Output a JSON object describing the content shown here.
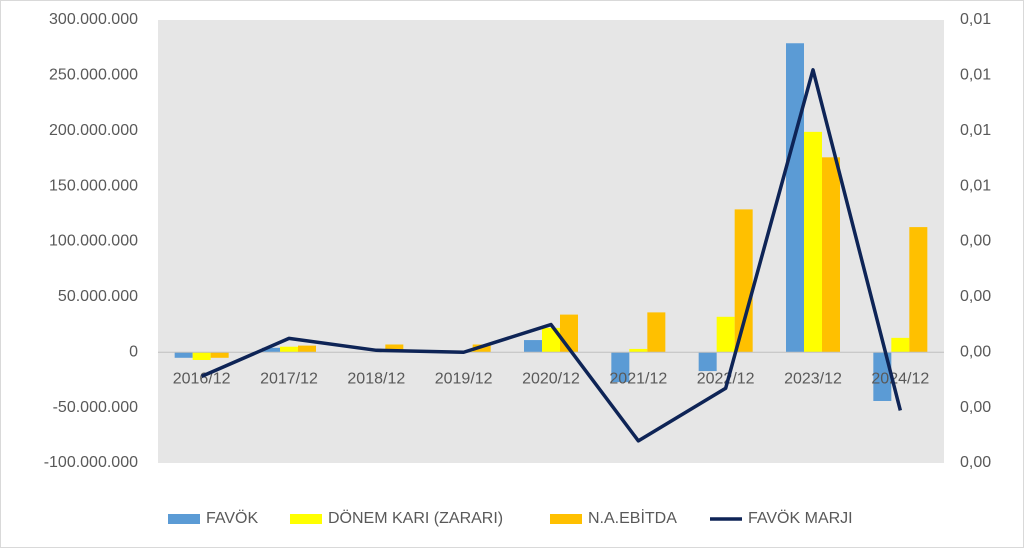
{
  "chart_data": {
    "type": "bar-line",
    "categories": [
      "2016/12",
      "2017/12",
      "2018/12",
      "2019/12",
      "2020/12",
      "2021/12",
      "2022/12",
      "2023/12",
      "2024/12"
    ],
    "series": [
      {
        "name": "FAVÖK",
        "type": "bar",
        "color": "#5b9bd5",
        "values": [
          -5000000,
          4000000,
          0,
          0,
          11000000,
          -27000000,
          -17000000,
          279000000,
          -44000000
        ]
      },
      {
        "name": "DÖNEM KARI (ZARARI)",
        "type": "bar",
        "color": "#ffff00",
        "values": [
          -7000000,
          5000000,
          0,
          1000000,
          22000000,
          3000000,
          32000000,
          199000000,
          13000000
        ]
      },
      {
        "name": "N.A.EBİTDA",
        "type": "bar",
        "color": "#ffc000",
        "values": [
          -5000000,
          6000000,
          7000000,
          7000000,
          34000000,
          36000000,
          129000000,
          176000000,
          113000000
        ]
      },
      {
        "name": "FAVÖK MARJI",
        "type": "line",
        "axis": "y2",
        "color": "#0e2456",
        "values": [
          -0.00087,
          0.0005,
          7e-05,
          0,
          0.001,
          -0.0032,
          -0.0013,
          0.0102,
          -0.0021
        ]
      }
    ],
    "ylim": [
      -100000000,
      300000000
    ],
    "yticks": [
      {
        "value": -100000000,
        "label": "-100.000.000"
      },
      {
        "value": -50000000,
        "label": "-50.000.000"
      },
      0,
      {
        "value": 50000000,
        "label": "50.000.000"
      },
      {
        "value": 100000000,
        "label": "100.000.000"
      },
      {
        "value": 150000000,
        "label": "150.000.000"
      },
      {
        "value": 200000000,
        "label": "200.000.000"
      },
      {
        "value": 250000000,
        "label": "250.000.000"
      },
      {
        "value": 300000000,
        "label": "300.000.000"
      }
    ],
    "y2lim": [
      -0.004,
      0.012
    ],
    "y2ticks": [
      {
        "value": -0.004,
        "label": "0,00"
      },
      {
        "value": -0.002,
        "label": "0,00"
      },
      {
        "value": 0,
        "label": "0,00"
      },
      {
        "value": 0.002,
        "label": "0,00"
      },
      {
        "value": 0.004,
        "label": "0,00"
      },
      {
        "value": 0.006,
        "label": "0,01"
      },
      {
        "value": 0.008,
        "label": "0,01"
      },
      {
        "value": 0.01,
        "label": "0,01"
      },
      {
        "value": 0.012,
        "label": "0,01"
      }
    ],
    "legend": "bottom"
  }
}
